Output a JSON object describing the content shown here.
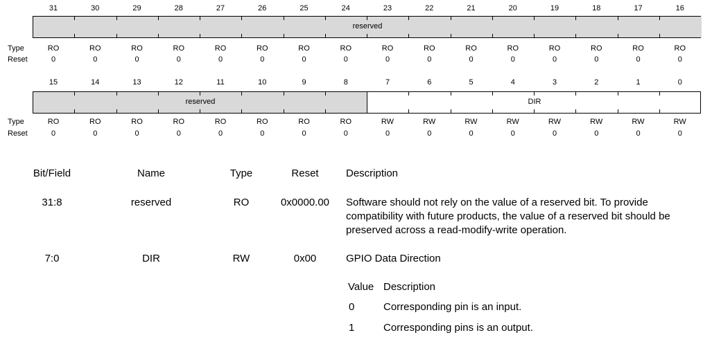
{
  "register": {
    "row_labels": {
      "type": "Type",
      "reset": "Reset"
    },
    "upper": {
      "bits": [
        "31",
        "30",
        "29",
        "28",
        "27",
        "26",
        "25",
        "24",
        "23",
        "22",
        "21",
        "20",
        "19",
        "18",
        "17",
        "16"
      ],
      "fields": [
        {
          "label": "reserved",
          "from_bit": 31,
          "to_bit": 16,
          "style": "gray"
        }
      ],
      "types": [
        "RO",
        "RO",
        "RO",
        "RO",
        "RO",
        "RO",
        "RO",
        "RO",
        "RO",
        "RO",
        "RO",
        "RO",
        "RO",
        "RO",
        "RO",
        "RO"
      ],
      "resets": [
        "0",
        "0",
        "0",
        "0",
        "0",
        "0",
        "0",
        "0",
        "0",
        "0",
        "0",
        "0",
        "0",
        "0",
        "0",
        "0"
      ]
    },
    "lower": {
      "bits": [
        "15",
        "14",
        "13",
        "12",
        "11",
        "10",
        "9",
        "8",
        "7",
        "6",
        "5",
        "4",
        "3",
        "2",
        "1",
        "0"
      ],
      "fields": [
        {
          "label": "reserved",
          "from_bit": 15,
          "to_bit": 8,
          "style": "gray"
        },
        {
          "label": "DIR",
          "from_bit": 7,
          "to_bit": 0,
          "style": "white"
        }
      ],
      "types": [
        "RO",
        "RO",
        "RO",
        "RO",
        "RO",
        "RO",
        "RO",
        "RO",
        "RW",
        "RW",
        "RW",
        "RW",
        "RW",
        "RW",
        "RW",
        "RW"
      ],
      "resets": [
        "0",
        "0",
        "0",
        "0",
        "0",
        "0",
        "0",
        "0",
        "0",
        "0",
        "0",
        "0",
        "0",
        "0",
        "0",
        "0"
      ]
    }
  },
  "table": {
    "headers": {
      "bitfield": "Bit/Field",
      "name": "Name",
      "type": "Type",
      "reset": "Reset",
      "description": "Description"
    },
    "rows": [
      {
        "bitfield": "31:8",
        "name": "reserved",
        "type": "RO",
        "reset": "0x0000.00",
        "description": [
          "Software should not rely on the value of a reserved bit. To provide",
          "compatibility with future products, the value of a reserved bit should be",
          "preserved across a read-modify-write operation."
        ]
      },
      {
        "bitfield": "7:0",
        "name": "DIR",
        "type": "RW",
        "reset": "0x00",
        "description": [
          "GPIO Data Direction"
        ]
      }
    ],
    "value_table": {
      "headers": {
        "value": "Value",
        "description": "Description"
      },
      "rows": [
        {
          "value": "0",
          "description": "Corresponding pin is an input."
        },
        {
          "value": "1",
          "description": "Corresponding pins is an output."
        }
      ]
    }
  }
}
